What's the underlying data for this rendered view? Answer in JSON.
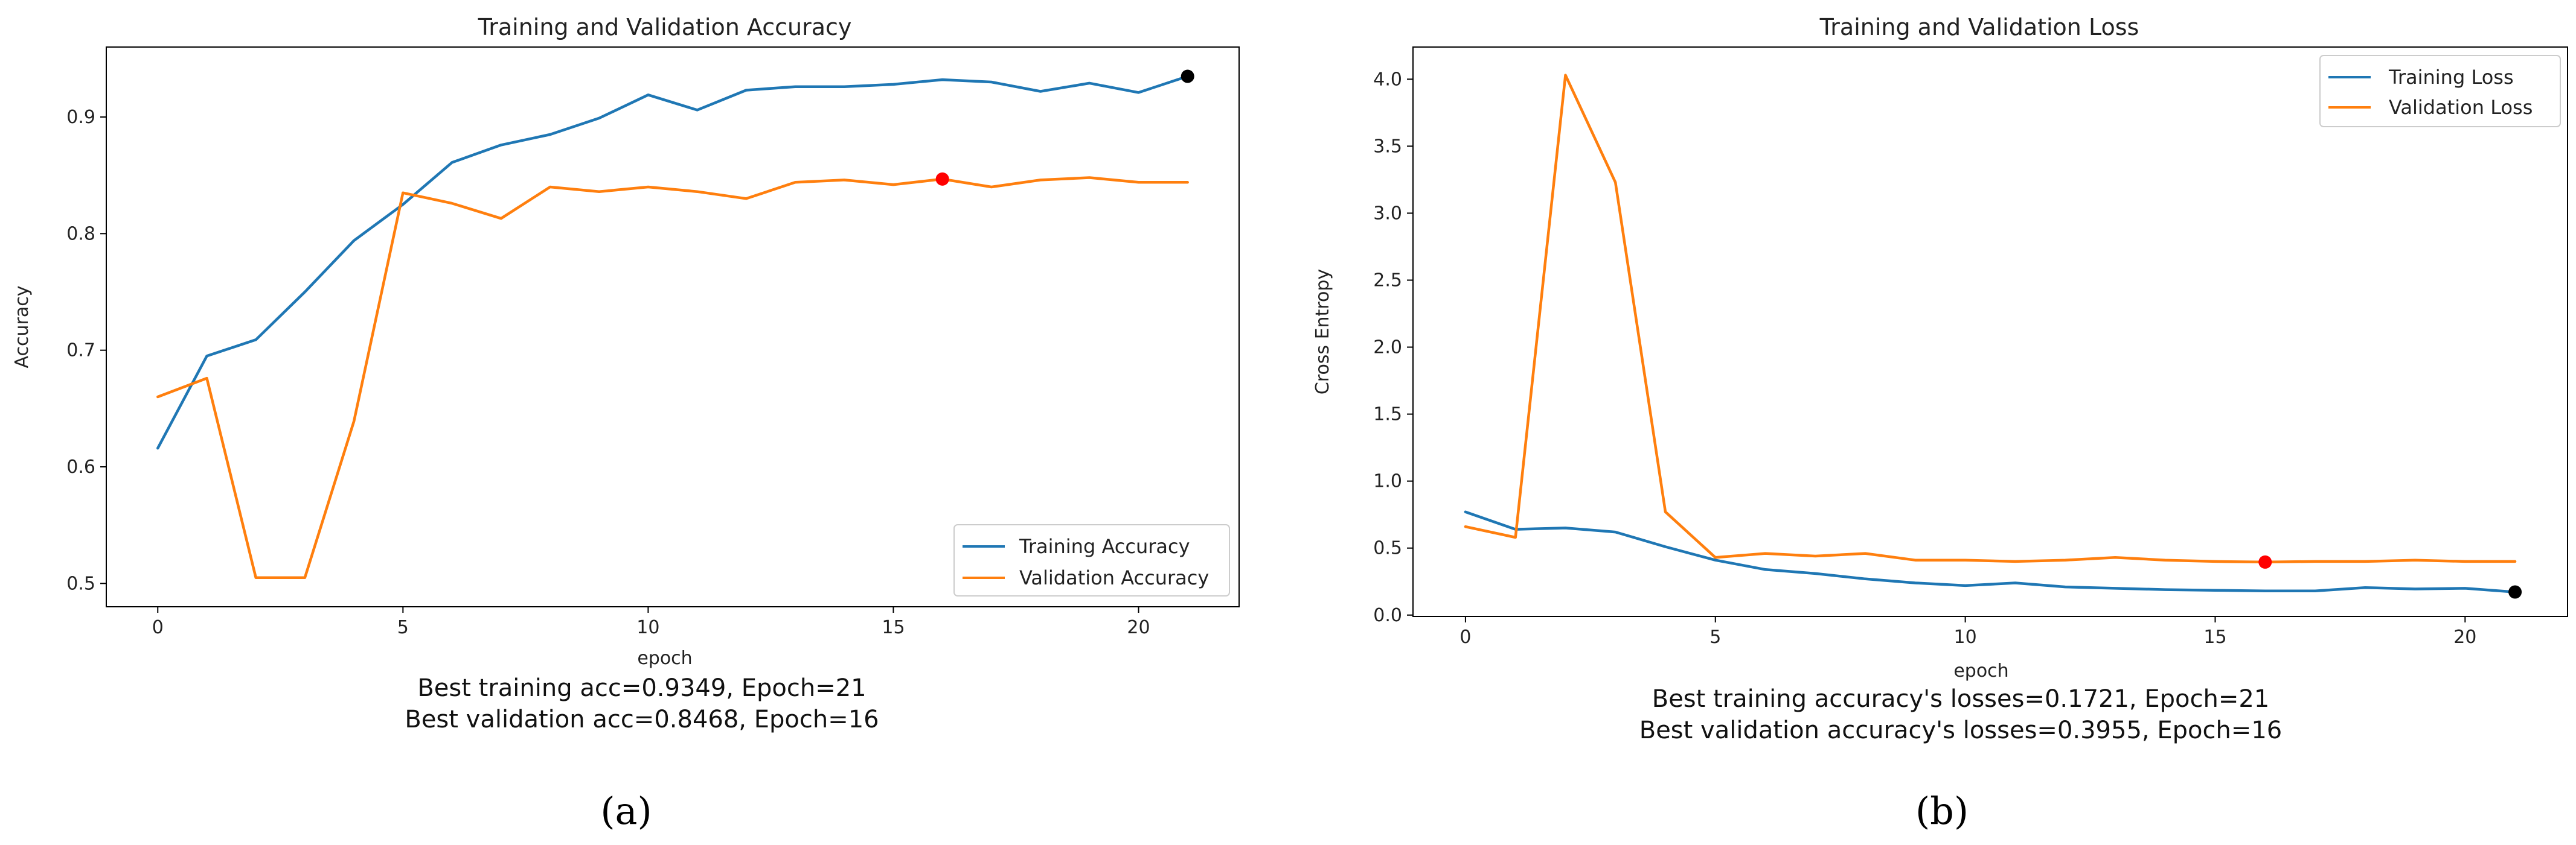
{
  "chart_data": [
    {
      "type": "line",
      "title": "Training and Validation Accuracy",
      "xlabel": "epoch",
      "ylabel": "Accuracy",
      "xlim": [
        -1.05,
        22.05
      ],
      "ylim": [
        0.48,
        0.96
      ],
      "xticks": [
        0,
        5,
        10,
        15,
        20
      ],
      "yticks": [
        0.5,
        0.6,
        0.7,
        0.8,
        0.9
      ],
      "ytick_labels": [
        "0.5",
        "0.6",
        "0.7",
        "0.8",
        "0.9"
      ],
      "x": [
        0,
        1,
        2,
        3,
        4,
        5,
        6,
        7,
        8,
        9,
        10,
        11,
        12,
        13,
        14,
        15,
        16,
        17,
        18,
        19,
        20,
        21
      ],
      "series": [
        {
          "name": "Training Accuracy",
          "color": "#1f77b4",
          "values": [
            0.616,
            0.695,
            0.709,
            0.75,
            0.794,
            0.825,
            0.861,
            0.876,
            0.885,
            0.899,
            0.919,
            0.906,
            0.923,
            0.926,
            0.926,
            0.928,
            0.932,
            0.93,
            0.922,
            0.929,
            0.921,
            0.9349
          ]
        },
        {
          "name": "Validation Accuracy",
          "color": "#ff7f0e",
          "values": [
            0.66,
            0.676,
            0.505,
            0.505,
            0.639,
            0.835,
            0.826,
            0.813,
            0.84,
            0.836,
            0.84,
            0.836,
            0.83,
            0.844,
            0.846,
            0.842,
            0.8468,
            0.84,
            0.846,
            0.848,
            0.844,
            0.844
          ]
        }
      ],
      "markers": [
        {
          "x": 21,
          "y": 0.9349,
          "color": "#000000"
        },
        {
          "x": 16,
          "y": 0.8468,
          "color": "#ff0000"
        }
      ],
      "legend_position": "lower-right",
      "caption_lines": [
        "Best training acc=0.9349, Epoch=21",
        "Best validation acc=0.8468, Epoch=16"
      ],
      "panel_label": "(a)"
    },
    {
      "type": "line",
      "title": "Training and Validation Loss",
      "xlabel": "epoch",
      "ylabel": "Cross Entropy",
      "xlim": [
        -1.05,
        22.05
      ],
      "ylim": [
        -0.01,
        4.24
      ],
      "xticks": [
        0,
        5,
        10,
        15,
        20
      ],
      "yticks": [
        0.0,
        0.5,
        1.0,
        1.5,
        2.0,
        2.5,
        3.0,
        3.5,
        4.0
      ],
      "ytick_labels": [
        "0.0",
        "0.5",
        "1.0",
        "1.5",
        "2.0",
        "2.5",
        "3.0",
        "3.5",
        "4.0"
      ],
      "x": [
        0,
        1,
        2,
        3,
        4,
        5,
        6,
        7,
        8,
        9,
        10,
        11,
        12,
        13,
        14,
        15,
        16,
        17,
        18,
        19,
        20,
        21
      ],
      "series": [
        {
          "name": "Training Loss",
          "color": "#1f77b4",
          "values": [
            0.77,
            0.64,
            0.65,
            0.62,
            0.51,
            0.41,
            0.34,
            0.31,
            0.27,
            0.24,
            0.22,
            0.24,
            0.21,
            0.2,
            0.19,
            0.185,
            0.18,
            0.18,
            0.205,
            0.195,
            0.2,
            0.1721
          ]
        },
        {
          "name": "Validation Loss",
          "color": "#ff7f0e",
          "values": [
            0.66,
            0.58,
            4.03,
            3.23,
            0.77,
            0.43,
            0.46,
            0.44,
            0.46,
            0.41,
            0.41,
            0.4,
            0.41,
            0.43,
            0.41,
            0.4,
            0.3955,
            0.4,
            0.4,
            0.41,
            0.4,
            0.4
          ]
        }
      ],
      "markers": [
        {
          "x": 21,
          "y": 0.1721,
          "color": "#000000"
        },
        {
          "x": 16,
          "y": 0.3955,
          "color": "#ff0000"
        }
      ],
      "legend_position": "upper-right",
      "caption_lines": [
        "Best training accuracy's losses=0.1721, Epoch=21",
        "Best validation accuracy's losses=0.3955, Epoch=16"
      ],
      "panel_label": "(b)"
    }
  ]
}
